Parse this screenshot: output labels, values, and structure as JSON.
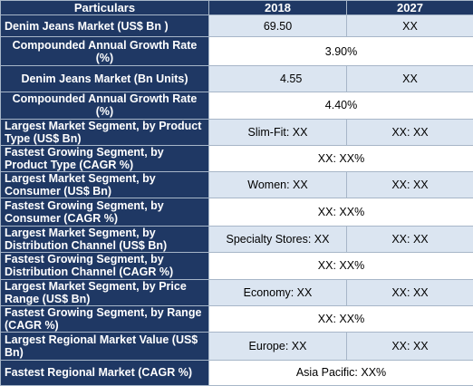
{
  "header": {
    "col_label": "Particulars",
    "col_2018": "2018",
    "col_2027": "2027"
  },
  "rows": [
    {
      "label": "Denim Jeans Market (US$ Bn )",
      "v2018": "69.50",
      "v2027": "XX"
    },
    {
      "label": "Compounded Annual Growth Rate (%)",
      "merged": "3.90%"
    },
    {
      "label": "Denim Jeans Market (Bn Units)",
      "v2018": "4.55",
      "v2027": "XX"
    },
    {
      "label": "Compounded Annual Growth Rate (%)",
      "merged": "4.40%"
    },
    {
      "label": "Largest Market Segment, by Product Type (US$ Bn)",
      "v2018": "Slim-Fit: XX",
      "v2027": "XX: XX"
    },
    {
      "label": "Fastest Growing Segment, by Product Type (CAGR %)",
      "merged": "XX: XX%"
    },
    {
      "label": "Largest Market Segment, by Consumer (US$ Bn)",
      "v2018": "Women: XX",
      "v2027": "XX: XX"
    },
    {
      "label": "Fastest Growing Segment, by Consumer (CAGR %)",
      "merged": "XX: XX%"
    },
    {
      "label": "Largest Market Segment, by Distribution Channel (US$ Bn)",
      "v2018": "Specialty Stores: XX",
      "v2027": "XX: XX"
    },
    {
      "label": "Fastest Growing Segment, by Distribution Channel (CAGR %)",
      "merged": "XX: XX%"
    },
    {
      "label": "Largest Market Segment, by Price Range (US$ Bn)",
      "v2018": "Economy: XX",
      "v2027": "XX: XX"
    },
    {
      "label": "Fastest Growing Segment, by Range (CAGR %)",
      "merged": "XX: XX%"
    },
    {
      "label": "Largest Regional Market Value (US$ Bn)",
      "v2018": "Europe: XX",
      "v2027": "XX: XX"
    },
    {
      "label": "Fastest Regional Market (CAGR %)",
      "merged": "Asia Pacific: XX%"
    }
  ],
  "colors": {
    "header_bg": "#1f3864",
    "band_bg": "#dbe5f1",
    "border": "#a7b6c8"
  }
}
